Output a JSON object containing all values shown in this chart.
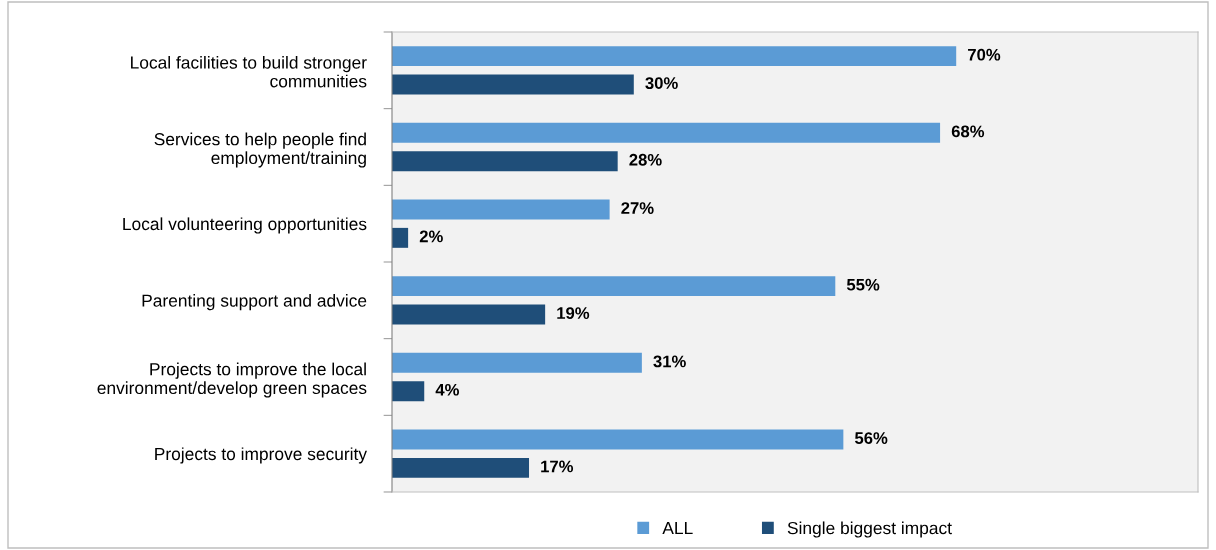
{
  "chart_data": {
    "type": "bar",
    "orientation": "horizontal",
    "categories": [
      "Local facilities to build stronger\ncommunities",
      "Services to help people find\nemployment/training",
      "Local volunteering opportunities",
      "Parenting support and advice",
      "Projects to improve the local\nenvironment/develop green spaces",
      "Projects to improve security"
    ],
    "series": [
      {
        "name": "ALL",
        "color": "#5b9bd5",
        "values": [
          70,
          68,
          27,
          55,
          31,
          56
        ],
        "value_labels": [
          "70%",
          "68%",
          "27%",
          "55%",
          "31%",
          "56%"
        ]
      },
      {
        "name": "Single biggest impact",
        "color": "#1f4e79",
        "values": [
          30,
          28,
          2,
          19,
          4,
          17
        ],
        "value_labels": [
          "30%",
          "28%",
          "2%",
          "19%",
          "4%",
          "17%"
        ]
      }
    ],
    "xlim": [
      0,
      100
    ],
    "tick_labels": "y",
    "grid": false,
    "legend": "bottom"
  }
}
